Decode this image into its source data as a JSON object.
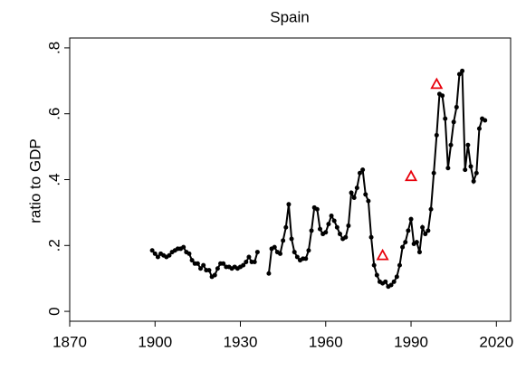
{
  "chart_data": {
    "type": "line",
    "title": "Spain",
    "y_label": "ratio to GDP",
    "xlim": [
      1870,
      2025
    ],
    "xticks": [
      1870,
      1900,
      1930,
      1960,
      1990,
      2020
    ],
    "ylim": [
      -0.03,
      0.83
    ],
    "yticks": [
      0,
      {
        "value": 0.2,
        "label": ".2"
      },
      {
        "value": 0.4,
        "label": ".4"
      },
      {
        "value": 0.6,
        "label": ".6"
      },
      {
        "value": 0.8,
        "label": ".8"
      }
    ],
    "series": [
      {
        "color": "#000000",
        "marker": "dot",
        "x": [
          1899,
          1900,
          1901,
          1902,
          1903,
          1904,
          1905,
          1906,
          1907,
          1908,
          1909,
          1910,
          1911,
          1912,
          1913,
          1914,
          1915,
          1916,
          1917,
          1918,
          1919,
          1920,
          1921,
          1922,
          1923,
          1924,
          1925,
          1926,
          1927,
          1928,
          1929,
          1930,
          1931,
          1932,
          1933,
          1934,
          1935,
          1936,
          1937,
          1938,
          1939,
          1940,
          1941,
          1942,
          1943,
          1944,
          1945,
          1946,
          1947,
          1948,
          1949,
          1950,
          1951,
          1952,
          1953,
          1954,
          1955,
          1956,
          1957,
          1958,
          1959,
          1960,
          1961,
          1962,
          1963,
          1964,
          1965,
          1966,
          1967,
          1968,
          1969,
          1970,
          1971,
          1972,
          1973,
          1974,
          1975,
          1976,
          1977,
          1978,
          1979,
          1980,
          1981,
          1982,
          1983,
          1984,
          1985,
          1986,
          1987,
          1988,
          1989,
          1990,
          1991,
          1992,
          1993,
          1994,
          1995,
          1996,
          1997,
          1998,
          1999,
          2000,
          2001,
          2002,
          2003,
          2004,
          2005,
          2006,
          2007,
          2008,
          2009,
          2010,
          2011,
          2012,
          2013,
          2014,
          2015,
          2016
        ],
        "values": [
          0.185,
          0.175,
          0.165,
          0.175,
          0.17,
          0.165,
          0.17,
          0.18,
          0.185,
          0.19,
          0.19,
          0.195,
          0.18,
          0.175,
          0.155,
          0.145,
          0.145,
          0.13,
          0.14,
          0.125,
          0.125,
          0.105,
          0.11,
          0.13,
          0.145,
          0.145,
          0.135,
          0.135,
          0.13,
          0.135,
          0.13,
          0.135,
          0.14,
          0.15,
          0.165,
          0.15,
          0.15,
          0.18,
          null,
          null,
          null,
          0.115,
          0.19,
          0.195,
          0.18,
          0.175,
          0.215,
          0.255,
          0.325,
          0.22,
          0.18,
          0.165,
          0.155,
          0.16,
          0.16,
          0.185,
          0.245,
          0.315,
          0.31,
          0.25,
          0.235,
          0.24,
          0.265,
          0.29,
          0.275,
          0.255,
          0.235,
          0.22,
          0.225,
          0.26,
          0.36,
          0.345,
          0.375,
          0.42,
          0.43,
          0.355,
          0.335,
          0.225,
          0.14,
          0.11,
          0.09,
          0.085,
          0.09,
          0.075,
          0.08,
          0.09,
          0.105,
          0.14,
          0.195,
          0.21,
          0.245,
          0.28,
          0.205,
          0.21,
          0.18,
          0.255,
          0.235,
          0.245,
          0.31,
          0.42,
          0.535,
          0.66,
          0.655,
          0.585,
          0.435,
          0.505,
          0.575,
          0.62,
          0.72,
          0.73,
          0.43,
          0.505,
          0.44,
          0.395,
          0.42,
          0.555,
          0.585,
          0.58
        ]
      },
      {
        "color": "#e8000b",
        "marker": "triangle",
        "x": [
          1980,
          1990,
          1999
        ],
        "values": [
          0.17,
          0.41,
          0.69
        ]
      }
    ]
  }
}
